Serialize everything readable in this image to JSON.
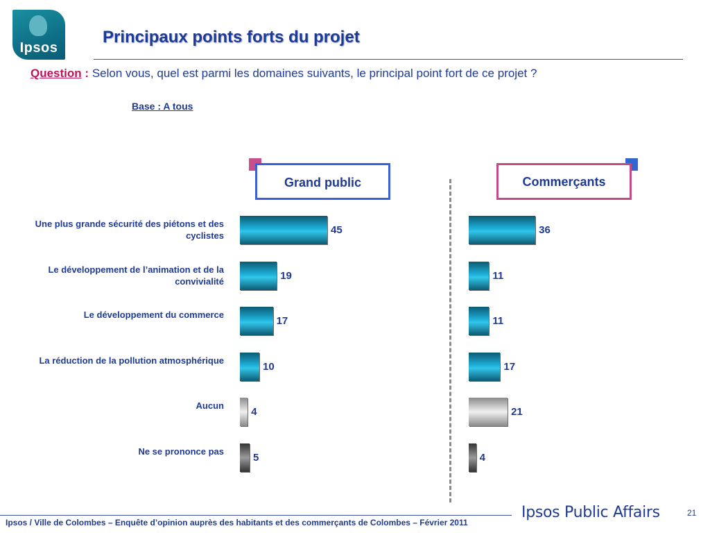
{
  "header": {
    "logo_text": "Ipsos",
    "title": "Principaux points forts du projet"
  },
  "question": {
    "label": "Question",
    "colon": ":",
    "text": "Selon vous, quel est parmi les domaines suivants, le principal point fort de ce projet ?"
  },
  "base": "Base : A tous",
  "legend": {
    "grand_public": "Grand public",
    "commercants": "Commerçants"
  },
  "colors": {
    "bar_blue": "#1eb0da",
    "bar_silver": "#c8c8c8",
    "bar_dark": "#555555",
    "text_navy": "#1f3a93",
    "accent_pink": "#c84f8a",
    "accent_blue": "#3466d2"
  },
  "chart_data": {
    "type": "bar",
    "orientation": "horizontal",
    "categories": [
      "Une plus grande sécurité des piétons et des cyclistes",
      "Le développement de l’animation et de la convivialité",
      "Le développement du commerce",
      "La réduction de la pollution atmosphérique",
      "Aucun",
      "Ne se prononce pas"
    ],
    "series": [
      {
        "name": "Grand public",
        "values": [
          45,
          19,
          17,
          10,
          4,
          5
        ]
      },
      {
        "name": "Commerçants",
        "values": [
          36,
          11,
          11,
          17,
          21,
          4
        ]
      }
    ],
    "bar_styles": [
      "blue",
      "blue",
      "blue",
      "blue",
      "silver",
      "dark"
    ],
    "xlim": [
      0,
      100
    ],
    "grid": false
  },
  "footer": {
    "text": "Ipsos / Ville de Colombes – Enquête d’opinion auprès des habitants et des commerçants de Colombes – Février 2011",
    "brand": "Ipsos Public Affairs",
    "page_number": "21"
  }
}
